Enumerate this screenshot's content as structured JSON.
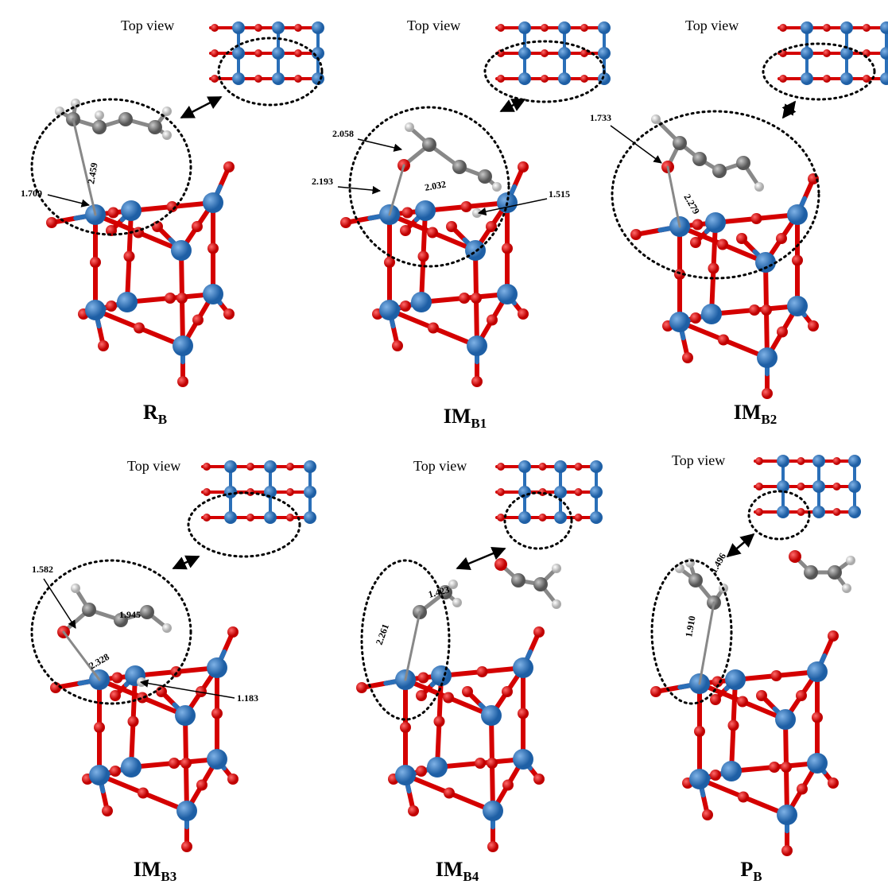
{
  "panels": [
    {
      "label": "R",
      "subscript": "B",
      "top_view": "Top view",
      "distances": [
        "2.459",
        "1.709"
      ]
    },
    {
      "label": "IM",
      "subscript": "B1",
      "top_view": "Top view",
      "distances": [
        "2.058",
        "2.193",
        "2.032",
        "1.515"
      ]
    },
    {
      "label": "IM",
      "subscript": "B2",
      "top_view": "Top view",
      "distances": [
        "1.733",
        "2.279"
      ]
    },
    {
      "label": "IM",
      "subscript": "B3",
      "top_view": "Top view",
      "distances": [
        "1.582",
        "1.945",
        "2.328",
        "1.183"
      ]
    },
    {
      "label": "IM",
      "subscript": "B4",
      "top_view": "Top view",
      "distances": [
        "1.423",
        "2.261"
      ]
    },
    {
      "label": "P",
      "subscript": "B",
      "top_view": "Top view",
      "distances": [
        "1.496",
        "1.910"
      ]
    }
  ]
}
